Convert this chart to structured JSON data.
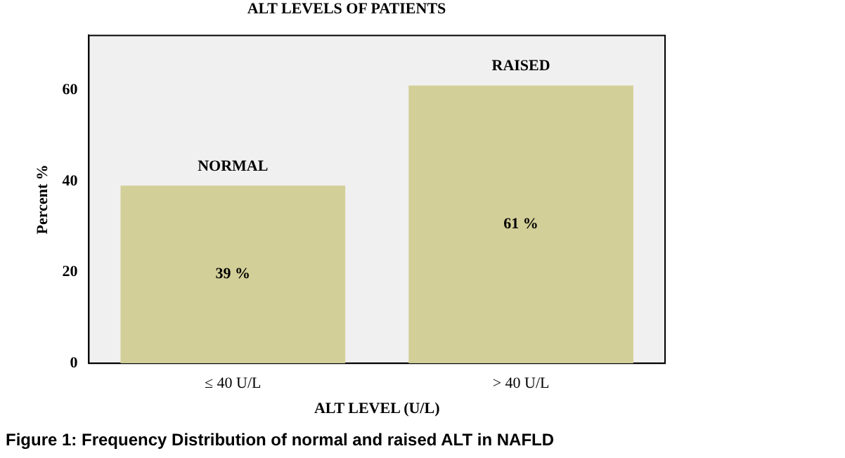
{
  "chart_data": {
    "type": "bar",
    "title": "ALT LEVELS OF PATIENTS",
    "xlabel": "ALT LEVEL (U/L)",
    "ylabel": "Percent %",
    "categories": [
      "≤ 40 U/L",
      "> 40 U/L"
    ],
    "values": [
      39,
      61
    ],
    "value_labels": [
      "39 %",
      "61 %"
    ],
    "color": "#d3cf98",
    "ylim": [
      0,
      72
    ],
    "yticks": [
      0,
      20,
      40,
      60
    ],
    "grid": false,
    "legend": false,
    "annotations": [
      {
        "text": "NORMAL",
        "x": "≤ 40 U/L",
        "y": 39
      },
      {
        "text": "RAISED",
        "x": "> 40 U/L",
        "y": 61
      },
      "Figure 1: Frequency Distribution of normal and raised ALT in NAFLD"
    ]
  }
}
